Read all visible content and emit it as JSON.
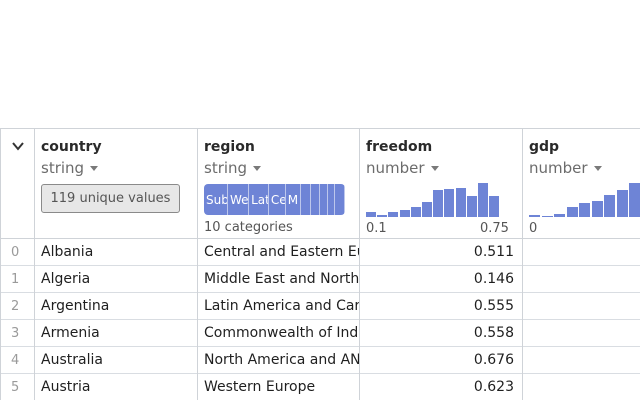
{
  "columns": [
    {
      "name": "country",
      "type": "string",
      "summary": "119 unique values"
    },
    {
      "name": "region",
      "type": "string",
      "summary": "10 categories",
      "categories": [
        {
          "label": "Sub",
          "share": 0.17
        },
        {
          "label": "We",
          "share": 0.15
        },
        {
          "label": "Lat",
          "share": 0.14
        },
        {
          "label": "Ce",
          "share": 0.12
        },
        {
          "label": "M",
          "share": 0.11
        },
        {
          "label": "",
          "share": 0.07
        },
        {
          "label": "",
          "share": 0.06
        },
        {
          "label": "",
          "share": 0.06
        },
        {
          "label": "",
          "share": 0.05
        },
        {
          "label": "",
          "share": 0.07
        }
      ]
    },
    {
      "name": "freedom",
      "type": "number",
      "axis_min": "0.1",
      "axis_max": "0.75",
      "histogram": [
        0.12,
        0.04,
        0.12,
        0.18,
        0.26,
        0.38,
        0.68,
        0.7,
        0.74,
        0.52,
        0.86,
        0.52
      ]
    },
    {
      "name": "gdp",
      "type": "number",
      "axis_min": "0",
      "histogram": [
        0.04,
        0.0,
        0.06,
        0.22,
        0.3,
        0.36,
        0.48,
        0.6,
        0.75
      ]
    }
  ],
  "rows": [
    {
      "index": "0",
      "country": "Albania",
      "region": "Central and Eastern Europe",
      "freedom": "0.511",
      "gdp": ""
    },
    {
      "index": "1",
      "country": "Algeria",
      "region": "Middle East and North Africa",
      "freedom": "0.146",
      "gdp": ""
    },
    {
      "index": "2",
      "country": "Argentina",
      "region": "Latin America and Caribbean",
      "freedom": "0.555",
      "gdp": ""
    },
    {
      "index": "3",
      "country": "Armenia",
      "region": "Commonwealth of Independent States",
      "freedom": "0.558",
      "gdp": ""
    },
    {
      "index": "4",
      "country": "Australia",
      "region": "North America and ANZ",
      "freedom": "0.676",
      "gdp": ""
    },
    {
      "index": "5",
      "country": "Austria",
      "region": "Western Europe",
      "freedom": "0.623",
      "gdp": ""
    }
  ],
  "colors": {
    "accent": "#6e84d6",
    "border": "#cfd3d8"
  }
}
